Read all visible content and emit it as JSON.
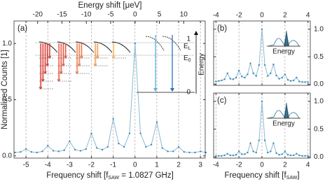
{
  "chart_data": [
    {
      "type": "line",
      "panel_label": "(a)",
      "title": "Energy shift [μeV]",
      "ylabel": "Normalized Counts [1]",
      "xlabel": {
        "main": "Frequency shift [f",
        "sub": "SAW",
        "tail": " = 1.0827 GHz]"
      },
      "color": "#3b88b4",
      "grid": "x",
      "x": [
        -5.5,
        -5.25,
        -5,
        -4.75,
        -4.5,
        -4.25,
        -4,
        -3.75,
        -3.5,
        -3.25,
        -3,
        -2.75,
        -2.5,
        -2.25,
        -2,
        -1.75,
        -1.5,
        -1.25,
        -1,
        -0.75,
        -0.5,
        -0.25,
        0,
        0.25,
        0.5,
        0.75,
        1,
        1.25,
        1.5,
        1.75,
        2,
        2.25,
        2.5,
        2.75,
        3,
        3.25
      ],
      "values": [
        0.03,
        0.035,
        0.06,
        0.035,
        0.03,
        0.04,
        0.09,
        0.045,
        0.04,
        0.05,
        0.13,
        0.055,
        0.045,
        0.06,
        0.2,
        0.07,
        0.055,
        0.08,
        0.33,
        0.11,
        0.08,
        0.2,
        1.0,
        0.2,
        0.08,
        0.1,
        0.3,
        0.07,
        0.04,
        0.04,
        0.08,
        0.035,
        0.03,
        0.03,
        0.04,
        0.03
      ],
      "xlim": [
        -5.55,
        3.22
      ],
      "xticks": [
        -5,
        -4,
        -3,
        -2,
        -1,
        0,
        1,
        2,
        3
      ],
      "x2lim": [
        -24.85,
        14.42
      ],
      "x2ticks": [
        -20,
        -15,
        -10,
        -5,
        0,
        5,
        10
      ],
      "ylim": [
        -0.02,
        1.2
      ],
      "yticks": [
        {
          "value": 0,
          "label": "0.0"
        },
        {
          "value": 0.5,
          "label": "0.5"
        },
        {
          "value": 1,
          "label": "1.0"
        }
      ],
      "inset": {
        "levels": [
          {
            "main": "E",
            "sub": "L"
          },
          {
            "main": "E",
            "sub": "0"
          }
        ],
        "axis_label": "Energy",
        "yticks": [
          1,
          0
        ]
      }
    },
    {
      "type": "line",
      "panel_label": "(b)",
      "color": "#3b88b4",
      "grid": "x",
      "inset_label": "Energy",
      "x": [
        -4,
        -3.75,
        -3.5,
        -3.25,
        -3,
        -2.75,
        -2.5,
        -2.25,
        -2,
        -1.75,
        -1.5,
        -1.25,
        -1,
        -0.75,
        -0.5,
        -0.25,
        0,
        0.25,
        0.5,
        0.75,
        1,
        1.25,
        1.5,
        1.75,
        2,
        2.25,
        2.5,
        2.75,
        3,
        3.25,
        3.5,
        3.75,
        4
      ],
      "values": [
        0.05,
        0.06,
        0.07,
        0.09,
        0.2,
        0.1,
        0.09,
        0.12,
        0.25,
        0.14,
        0.12,
        0.18,
        0.38,
        0.2,
        0.15,
        0.35,
        1.0,
        0.35,
        0.15,
        0.2,
        0.36,
        0.16,
        0.1,
        0.12,
        0.18,
        0.08,
        0.06,
        0.07,
        0.12,
        0.05,
        0.04,
        0.04,
        0.04
      ],
      "xlim": [
        -4.2,
        4.2
      ],
      "xticks": [
        -4,
        -2,
        0,
        2,
        4
      ],
      "ylim": [
        -0.02,
        1.15
      ],
      "yticks": [
        {
          "value": 0,
          "label": "0.0"
        },
        {
          "value": 0.5,
          "label": "0.5"
        },
        {
          "value": 1,
          "label": "1.0"
        }
      ]
    },
    {
      "type": "line",
      "panel_label": "(c)",
      "color": "#3b88b4",
      "grid": "x",
      "inset_label": "Energy",
      "xlabel": {
        "main": "Frequency shift [f",
        "sub": "SAW",
        "tail": "]"
      },
      "x": [
        -4,
        -3.75,
        -3.5,
        -3.25,
        -3,
        -2.75,
        -2.5,
        -2.25,
        -2,
        -1.75,
        -1.5,
        -1.25,
        -1,
        -0.75,
        -0.5,
        -0.25,
        0,
        0.25,
        0.5,
        0.75,
        1,
        1.25,
        1.5,
        1.75,
        2,
        2.25,
        2.5,
        2.75,
        3,
        3.25,
        3.5,
        3.75,
        4
      ],
      "values": [
        0.02,
        0.02,
        0.02,
        0.03,
        0.06,
        0.03,
        0.03,
        0.04,
        0.1,
        0.05,
        0.05,
        0.08,
        0.25,
        0.1,
        0.08,
        0.3,
        1.0,
        0.3,
        0.08,
        0.1,
        0.25,
        0.07,
        0.04,
        0.05,
        0.1,
        0.04,
        0.03,
        0.03,
        0.06,
        0.03,
        0.02,
        0.02,
        0.02
      ],
      "xlim": [
        -4.2,
        4.2
      ],
      "xticks": [
        -4,
        -2,
        0,
        2,
        4
      ],
      "ylim": [
        -0.02,
        1.15
      ],
      "yticks": [
        {
          "value": 0,
          "label": "0.0"
        },
        {
          "value": 0.5,
          "label": "0.5"
        },
        {
          "value": 1,
          "label": "1.0"
        }
      ]
    }
  ]
}
